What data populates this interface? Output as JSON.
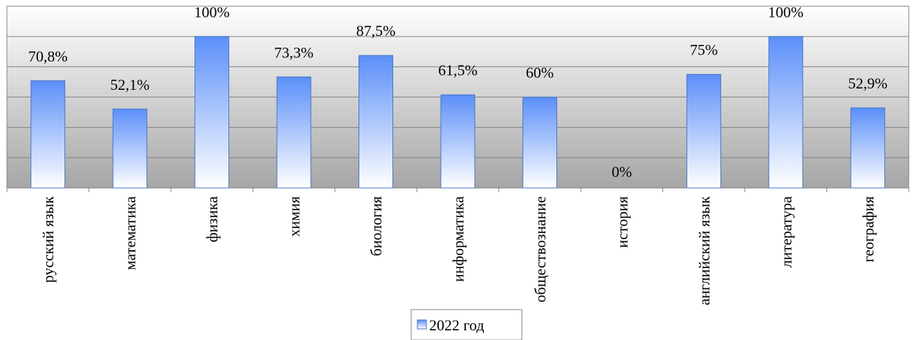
{
  "chart_data": {
    "type": "bar",
    "categories": [
      "русский язык",
      "математика",
      "физика",
      "химия",
      "биология",
      "информатика",
      "обществознание",
      "история",
      "английский язык",
      "литература",
      "география"
    ],
    "series": [
      {
        "name": "2022 год",
        "values": [
          70.8,
          52.1,
          100,
          73.3,
          87.5,
          61.5,
          60,
          0,
          75,
          100,
          52.9
        ],
        "labels": [
          "70,8%",
          "52,1%",
          "100%",
          "73,3%",
          "87,5%",
          "61,5%",
          "60%",
          "0%",
          "75%",
          "100%",
          "52,9%"
        ]
      }
    ],
    "ylim": [
      0,
      120
    ],
    "y_gridlines": [
      0,
      20,
      40,
      60,
      80,
      100,
      120
    ],
    "grid": true,
    "legend_position": "bottom",
    "colors": {
      "bar_top": "#5b8ff9",
      "bar_bottom": "#ffffff",
      "bar_stroke": "#4472c4",
      "plot_bg_top": "#ffffff",
      "plot_bg_bottom": "#a6a6a6",
      "gridline": "#7f7f7f",
      "frame": "#808080"
    }
  }
}
